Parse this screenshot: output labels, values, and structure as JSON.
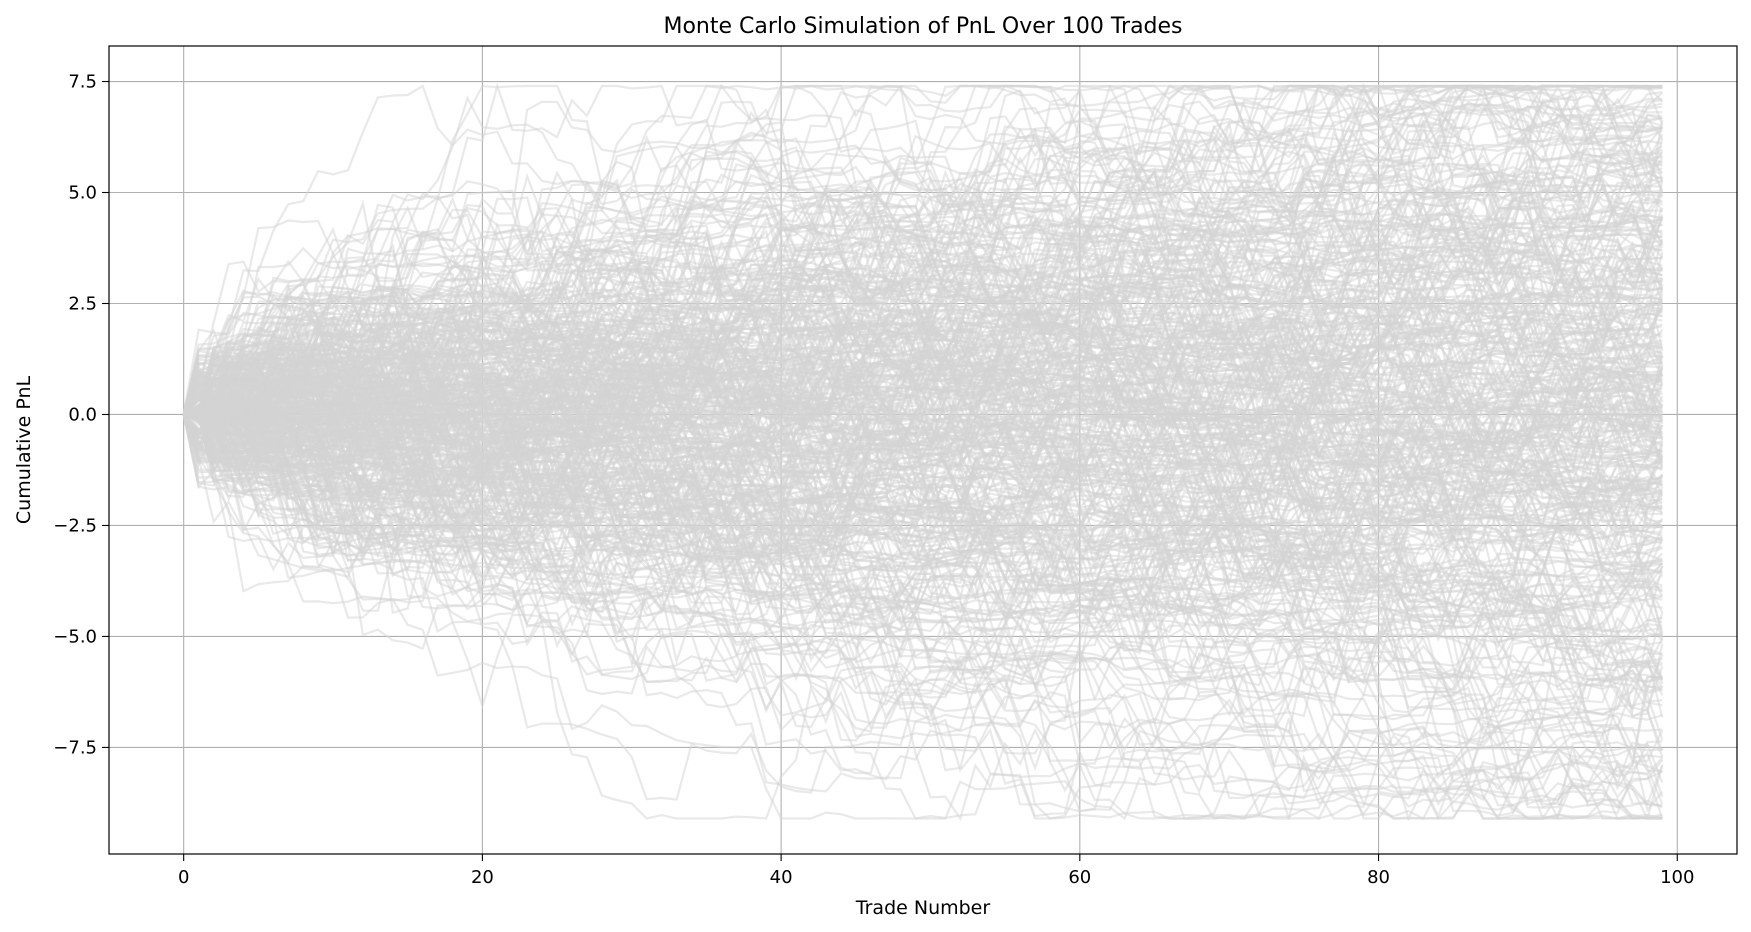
{
  "chart_data": {
    "type": "line",
    "title": "Monte Carlo Simulation of PnL Over 100 Trades",
    "xlabel": "Trade Number",
    "ylabel": "Cumulative PnL",
    "xlim": [
      -5,
      104
    ],
    "ylim": [
      -9.9,
      8.3
    ],
    "x_ticks": [
      0,
      20,
      40,
      60,
      80,
      100
    ],
    "y_ticks": [
      -7.5,
      -5.0,
      -2.5,
      0.0,
      2.5,
      5.0,
      7.5
    ],
    "x_tick_labels": [
      "0",
      "20",
      "40",
      "60",
      "80",
      "100"
    ],
    "y_tick_labels": [
      "−7.5",
      "−5.0",
      "−2.5",
      "0.0",
      "2.5",
      "5.0",
      "7.5"
    ],
    "grid": true,
    "legend": "none",
    "series_color": "#d3d3d3",
    "series_opacity": 0.5,
    "num_simulations": 1000,
    "num_trades": 100,
    "x_start": 0,
    "x_end": 99,
    "final_range_approx": [
      -9.1,
      7.4
    ]
  }
}
